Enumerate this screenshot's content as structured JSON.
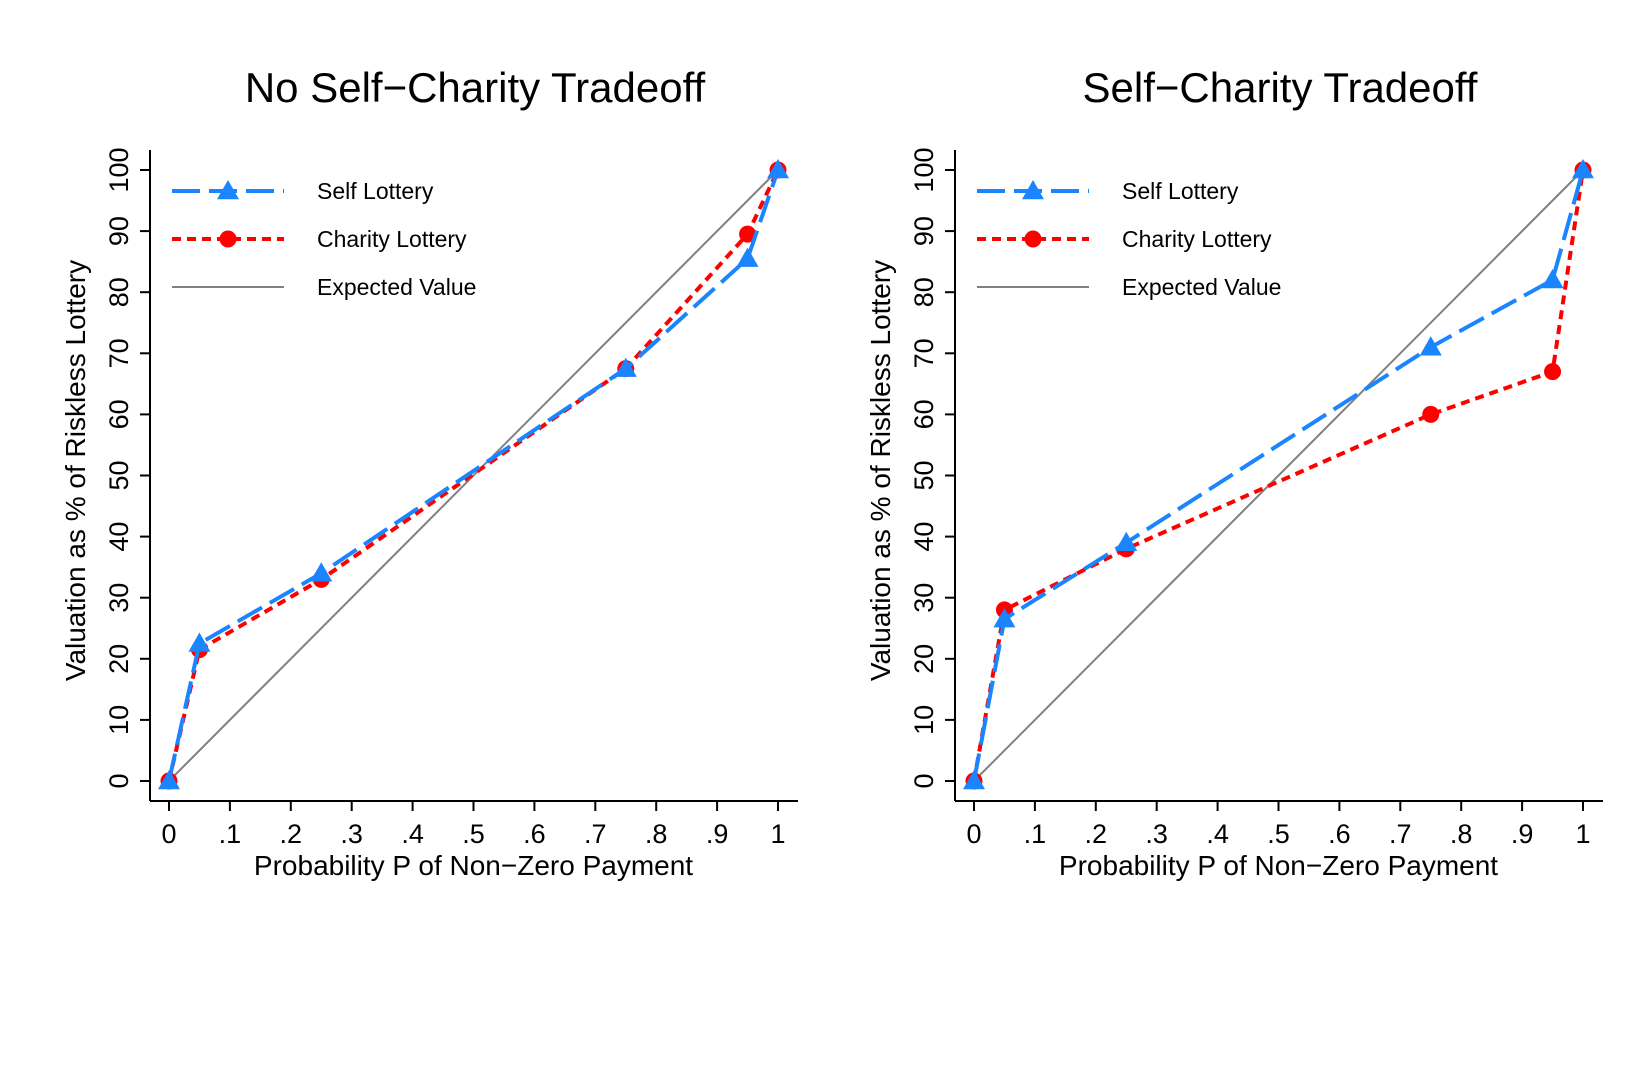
{
  "chart_data": [
    {
      "type": "line",
      "title": "No Self−Charity Tradeoff",
      "xlabel": "Probability P of Non−Zero Payment",
      "ylabel": "Valuation as % of Riskless Lottery",
      "xlim": [
        0,
        1
      ],
      "ylim": [
        0,
        100
      ],
      "x_ticks": [
        "0",
        ".1",
        ".2",
        ".3",
        ".4",
        ".5",
        ".6",
        ".7",
        ".8",
        ".9",
        "1"
      ],
      "y_ticks": [
        "0",
        "10",
        "20",
        "30",
        "40",
        "50",
        "60",
        "70",
        "80",
        "90",
        "100"
      ],
      "grid": false,
      "legend_position": "top-left",
      "series": [
        {
          "name": "Self Lottery",
          "color": "#1a85ff",
          "marker": "triangle",
          "line": "long-dash",
          "x": [
            0,
            0.05,
            0.25,
            0.75,
            0.95,
            1
          ],
          "y": [
            0,
            22.5,
            34,
            67.5,
            85.5,
            100
          ]
        },
        {
          "name": "Charity Lottery",
          "color": "#ff0000",
          "marker": "circle",
          "line": "short-dash",
          "x": [
            0,
            0.05,
            0.25,
            0.75,
            0.95,
            1
          ],
          "y": [
            0,
            21.5,
            33,
            67.5,
            89.5,
            100
          ]
        },
        {
          "name": "Expected Value",
          "color": "#808080",
          "marker": "none",
          "line": "solid",
          "x": [
            0,
            1
          ],
          "y": [
            0,
            100
          ]
        }
      ]
    },
    {
      "type": "line",
      "title": "Self−Charity Tradeoff",
      "xlabel": "Probability P of Non−Zero Payment",
      "ylabel": "Valuation as % of Riskless Lottery",
      "xlim": [
        0,
        1
      ],
      "ylim": [
        0,
        100
      ],
      "x_ticks": [
        "0",
        ".1",
        ".2",
        ".3",
        ".4",
        ".5",
        ".6",
        ".7",
        ".8",
        ".9",
        "1"
      ],
      "y_ticks": [
        "0",
        "10",
        "20",
        "30",
        "40",
        "50",
        "60",
        "70",
        "80",
        "90",
        "100"
      ],
      "grid": false,
      "legend_position": "top-left",
      "series": [
        {
          "name": "Self Lottery",
          "color": "#1a85ff",
          "marker": "triangle",
          "line": "long-dash",
          "x": [
            0,
            0.05,
            0.25,
            0.75,
            0.95,
            1
          ],
          "y": [
            0,
            26.5,
            39,
            71,
            82,
            100
          ]
        },
        {
          "name": "Charity Lottery",
          "color": "#ff0000",
          "marker": "circle",
          "line": "short-dash",
          "x": [
            0,
            0.05,
            0.25,
            0.75,
            0.95,
            1
          ],
          "y": [
            0,
            28,
            38,
            60,
            67,
            100
          ]
        },
        {
          "name": "Expected Value",
          "color": "#808080",
          "marker": "none",
          "line": "solid",
          "x": [
            0,
            1
          ],
          "y": [
            0,
            100
          ]
        }
      ]
    }
  ]
}
